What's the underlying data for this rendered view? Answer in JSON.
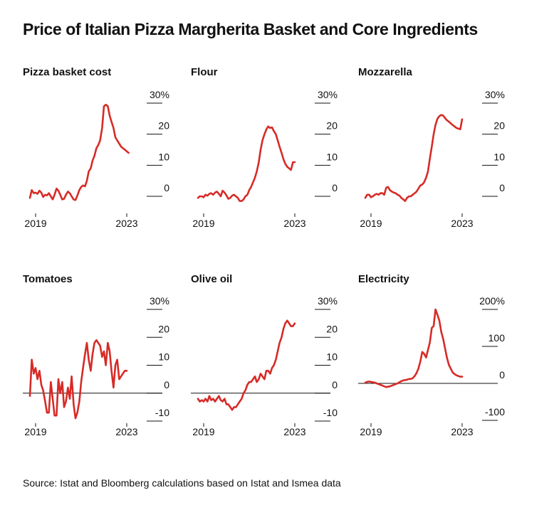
{
  "title": "Price of Italian Pizza Margherita Basket and Core Ingredients",
  "source": "Source: Istat and Bloomberg calculations based on Istat and Ismea data",
  "colors": {
    "line": "#d62b27",
    "axis": "#111111",
    "text": "#111111"
  },
  "chart_data": [
    {
      "type": "line",
      "title": "Pizza basket cost",
      "x_ticks": [
        "2019",
        "2023"
      ],
      "x_range": [
        2018.75,
        2023.1
      ],
      "ylim": [
        -3,
        31
      ],
      "y_ticks": [
        0,
        10,
        20,
        30
      ],
      "y_tick_labels": [
        "0",
        "10",
        "20",
        "30%"
      ],
      "zero_line": false,
      "series": [
        {
          "x": [
            2018.75,
            2018.83,
            2018.92,
            2019.0,
            2019.08,
            2019.17,
            2019.25,
            2019.33,
            2019.42,
            2019.5,
            2019.58,
            2019.67,
            2019.75,
            2019.83,
            2019.92,
            2020.0,
            2020.08,
            2020.17,
            2020.25,
            2020.33,
            2020.42,
            2020.5,
            2020.58,
            2020.67,
            2020.75,
            2020.83,
            2020.92,
            2021.0,
            2021.08,
            2021.17,
            2021.25,
            2021.33,
            2021.42,
            2021.5,
            2021.58,
            2021.67,
            2021.75,
            2021.83,
            2021.92,
            2022.0,
            2022.08,
            2022.17,
            2022.25,
            2022.33,
            2022.42,
            2022.5,
            2022.58,
            2022.67,
            2022.75,
            2022.83,
            2022.92,
            2023.0,
            2023.08
          ],
          "y": [
            -0.5,
            2,
            1,
            1.2,
            0.8,
            1.8,
            1.2,
            -0.2,
            0.5,
            0.3,
            1,
            0,
            -1,
            0.5,
            2.5,
            1.8,
            0.5,
            -1,
            -0.8,
            0.5,
            1.5,
            1,
            0,
            -1,
            -1.2,
            0.2,
            2,
            3,
            3.5,
            3.2,
            5,
            8,
            9,
            11.5,
            13,
            15.5,
            16.5,
            18,
            22,
            29,
            29.5,
            29,
            26,
            24,
            22,
            19,
            18,
            17,
            16,
            15.5,
            15,
            14.5,
            14
          ]
        }
      ]
    },
    {
      "type": "line",
      "title": "Flour",
      "x_ticks": [
        "2019",
        "2023"
      ],
      "x_range": [
        2018.75,
        2023.1
      ],
      "ylim": [
        -3,
        31
      ],
      "y_ticks": [
        0,
        10,
        20,
        30
      ],
      "y_tick_labels": [
        "0",
        "10",
        "20",
        "30%"
      ],
      "zero_line": false,
      "series": [
        {
          "x": [
            2018.75,
            2018.83,
            2018.92,
            2019.0,
            2019.08,
            2019.17,
            2019.25,
            2019.33,
            2019.42,
            2019.5,
            2019.58,
            2019.67,
            2019.75,
            2019.83,
            2019.92,
            2020.0,
            2020.08,
            2020.17,
            2020.25,
            2020.33,
            2020.42,
            2020.5,
            2020.58,
            2020.67,
            2020.75,
            2020.83,
            2020.92,
            2021.0,
            2021.08,
            2021.17,
            2021.25,
            2021.33,
            2021.42,
            2021.5,
            2021.58,
            2021.67,
            2021.75,
            2021.83,
            2021.92,
            2022.0,
            2022.08,
            2022.17,
            2022.25,
            2022.33,
            2022.42,
            2022.5,
            2022.58,
            2022.67,
            2022.75,
            2022.83,
            2022.92,
            2023.0
          ],
          "y": [
            -0.5,
            0,
            0,
            -0.3,
            0.5,
            0.2,
            0.8,
            1,
            0.5,
            1.2,
            1.5,
            0.8,
            0,
            1.8,
            1.2,
            0.3,
            -0.8,
            -0.5,
            0.2,
            0.5,
            0,
            -0.5,
            -1.5,
            -1.5,
            -1,
            0,
            0.5,
            2,
            3,
            4.5,
            6,
            8,
            11,
            15,
            18,
            20,
            21.5,
            22.5,
            22,
            22.2,
            21,
            20,
            18,
            16,
            14,
            12,
            10.5,
            9.5,
            9,
            8.5,
            11,
            11
          ]
        }
      ]
    },
    {
      "type": "line",
      "title": "Mozzarella",
      "x_ticks": [
        "2019",
        "2023"
      ],
      "x_range": [
        2018.75,
        2023.1
      ],
      "ylim": [
        -3,
        31
      ],
      "y_ticks": [
        0,
        10,
        20,
        30
      ],
      "y_tick_labels": [
        "0",
        "10",
        "20",
        "30%"
      ],
      "zero_line": false,
      "series": [
        {
          "x": [
            2018.75,
            2018.83,
            2018.92,
            2019.0,
            2019.08,
            2019.17,
            2019.25,
            2019.33,
            2019.42,
            2019.5,
            2019.58,
            2019.67,
            2019.75,
            2019.83,
            2019.92,
            2020.0,
            2020.08,
            2020.17,
            2020.25,
            2020.33,
            2020.42,
            2020.5,
            2020.58,
            2020.67,
            2020.75,
            2020.83,
            2020.92,
            2021.0,
            2021.08,
            2021.17,
            2021.25,
            2021.33,
            2021.42,
            2021.5,
            2021.58,
            2021.67,
            2021.75,
            2021.83,
            2021.92,
            2022.0,
            2022.08,
            2022.17,
            2022.25,
            2022.33,
            2022.42,
            2022.5,
            2022.58,
            2022.67,
            2022.75,
            2022.83,
            2022.92,
            2023.0
          ],
          "y": [
            -0.5,
            0.5,
            0.5,
            -0.3,
            0,
            0.5,
            0.8,
            0.5,
            1,
            1,
            0.5,
            2.8,
            3,
            2,
            1.5,
            1.2,
            1,
            0.5,
            0.2,
            -0.5,
            -1,
            -1.5,
            -0.5,
            0,
            0,
            0.5,
            1,
            1.5,
            2.5,
            3.5,
            3.8,
            4.5,
            6,
            8,
            12,
            16,
            20,
            23,
            25,
            25.8,
            26.2,
            26,
            25.2,
            24.5,
            24,
            23.5,
            23,
            22.5,
            22,
            21.8,
            21.6,
            24.8
          ]
        }
      ]
    },
    {
      "type": "line",
      "title": "Tomatoes",
      "x_ticks": [
        "2019",
        "2023"
      ],
      "x_range": [
        2018.75,
        2023.1
      ],
      "ylim": [
        -12,
        32
      ],
      "y_ticks": [
        -10,
        0,
        10,
        20,
        30
      ],
      "y_tick_labels": [
        "-10",
        "0",
        "10",
        "20",
        "30%"
      ],
      "zero_line": true,
      "series": [
        {
          "x": [
            2018.75,
            2018.83,
            2018.92,
            2019.0,
            2019.08,
            2019.17,
            2019.25,
            2019.33,
            2019.42,
            2019.5,
            2019.58,
            2019.67,
            2019.75,
            2019.83,
            2019.92,
            2020.0,
            2020.08,
            2020.17,
            2020.25,
            2020.33,
            2020.42,
            2020.5,
            2020.58,
            2020.67,
            2020.75,
            2020.83,
            2020.92,
            2021.0,
            2021.08,
            2021.17,
            2021.25,
            2021.33,
            2021.42,
            2021.5,
            2021.58,
            2021.67,
            2021.75,
            2021.83,
            2021.92,
            2022.0,
            2022.08,
            2022.17,
            2022.25,
            2022.33,
            2022.42,
            2022.5,
            2022.58,
            2022.67,
            2022.75,
            2022.83,
            2022.92,
            2023.0
          ],
          "y": [
            -1,
            12,
            7,
            9,
            5,
            8,
            3,
            1,
            -3,
            -7,
            -7,
            4,
            -2,
            -8,
            -8,
            5,
            0,
            4,
            -5,
            -3,
            2,
            -2,
            6,
            -4,
            -9,
            -7,
            -3,
            4,
            9,
            14,
            18,
            12,
            8,
            14,
            18,
            19,
            18,
            17,
            13,
            15,
            10,
            18,
            15,
            8,
            2,
            10,
            12,
            5,
            6,
            7,
            8,
            8
          ]
        }
      ]
    },
    {
      "type": "line",
      "title": "Olive oil",
      "x_ticks": [
        "2019",
        "2023"
      ],
      "x_range": [
        2018.75,
        2023.1
      ],
      "ylim": [
        -12,
        32
      ],
      "y_ticks": [
        -10,
        0,
        10,
        20,
        30
      ],
      "y_tick_labels": [
        "-10",
        "0",
        "10",
        "20",
        "30%"
      ],
      "zero_line": true,
      "series": [
        {
          "x": [
            2018.75,
            2018.83,
            2018.92,
            2019.0,
            2019.08,
            2019.17,
            2019.25,
            2019.33,
            2019.42,
            2019.5,
            2019.58,
            2019.67,
            2019.75,
            2019.83,
            2019.92,
            2020.0,
            2020.08,
            2020.17,
            2020.25,
            2020.33,
            2020.42,
            2020.5,
            2020.58,
            2020.67,
            2020.75,
            2020.83,
            2020.92,
            2021.0,
            2021.08,
            2021.17,
            2021.25,
            2021.33,
            2021.42,
            2021.5,
            2021.58,
            2021.67,
            2021.75,
            2021.83,
            2021.92,
            2022.0,
            2022.08,
            2022.17,
            2022.25,
            2022.33,
            2022.42,
            2022.5,
            2022.58,
            2022.67,
            2022.75,
            2022.83,
            2022.92,
            2023.0
          ],
          "y": [
            -2,
            -3,
            -2.5,
            -3,
            -2,
            -3,
            -1,
            -2.5,
            -2,
            -3,
            -2,
            -1,
            -2.5,
            -3,
            -2,
            -4,
            -4,
            -5,
            -6,
            -5,
            -5,
            -4,
            -3,
            -2,
            0,
            1,
            3,
            4,
            4,
            5,
            6,
            4,
            5,
            7,
            6,
            5,
            8,
            8,
            7,
            9,
            10,
            12,
            15,
            18,
            20,
            23,
            25,
            26,
            25,
            24,
            24,
            25
          ]
        }
      ]
    },
    {
      "type": "line",
      "title": "Electricity",
      "x_ticks": [
        "2019",
        "2023"
      ],
      "x_range": [
        2018.75,
        2023.1
      ],
      "ylim": [
        -105,
        210
      ],
      "y_ticks": [
        -100,
        0,
        100,
        200
      ],
      "y_tick_labels": [
        "-100",
        "0",
        "100",
        "200%"
      ],
      "zero_line": true,
      "series": [
        {
          "x": [
            2018.75,
            2018.83,
            2018.92,
            2019.0,
            2019.08,
            2019.17,
            2019.25,
            2019.33,
            2019.42,
            2019.5,
            2019.58,
            2019.67,
            2019.75,
            2019.83,
            2019.92,
            2020.0,
            2020.08,
            2020.17,
            2020.25,
            2020.33,
            2020.42,
            2020.5,
            2020.58,
            2020.67,
            2020.75,
            2020.83,
            2020.92,
            2021.0,
            2021.08,
            2021.17,
            2021.25,
            2021.33,
            2021.42,
            2021.5,
            2021.58,
            2021.67,
            2021.75,
            2021.83,
            2021.92,
            2022.0,
            2022.08,
            2022.17,
            2022.25,
            2022.33,
            2022.42,
            2022.5,
            2022.58,
            2022.67,
            2022.75,
            2022.83,
            2022.92,
            2023.0
          ],
          "y": [
            2,
            4,
            5,
            4,
            3,
            2,
            0,
            -2,
            -4,
            -6,
            -8,
            -10,
            -9,
            -8,
            -6,
            -4,
            -2,
            0,
            3,
            6,
            8,
            9,
            10,
            12,
            12,
            14,
            20,
            28,
            40,
            60,
            85,
            80,
            70,
            90,
            110,
            150,
            155,
            200,
            185,
            170,
            140,
            120,
            95,
            70,
            50,
            40,
            30,
            25,
            22,
            20,
            18,
            18
          ]
        }
      ]
    }
  ]
}
